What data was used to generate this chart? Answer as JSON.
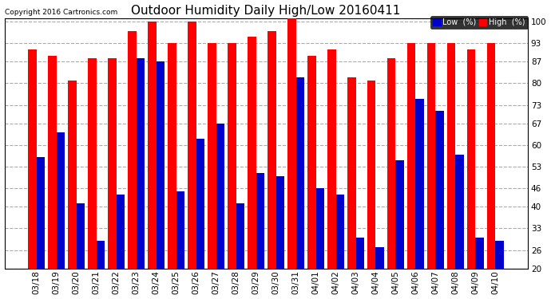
{
  "title": "Outdoor Humidity Daily High/Low 20160411",
  "copyright": "Copyright 2016 Cartronics.com",
  "categories": [
    "03/18",
    "03/19",
    "03/20",
    "03/21",
    "03/22",
    "03/23",
    "03/24",
    "03/25",
    "03/26",
    "03/27",
    "03/28",
    "03/29",
    "03/30",
    "03/31",
    "04/01",
    "04/02",
    "04/03",
    "04/04",
    "04/05",
    "04/06",
    "04/07",
    "04/08",
    "04/09",
    "04/10"
  ],
  "high": [
    91,
    89,
    81,
    88,
    88,
    97,
    100,
    93,
    100,
    93,
    93,
    95,
    97,
    101,
    89,
    91,
    82,
    81,
    88,
    93,
    93,
    93,
    91,
    93
  ],
  "low": [
    56,
    64,
    41,
    29,
    44,
    88,
    87,
    45,
    62,
    67,
    41,
    51,
    50,
    82,
    46,
    44,
    30,
    27,
    55,
    75,
    71,
    57,
    30,
    29
  ],
  "ymin": 20,
  "ylim": [
    20,
    101
  ],
  "yticks": [
    20,
    26,
    33,
    40,
    46,
    53,
    60,
    67,
    73,
    80,
    87,
    93,
    100
  ],
  "bar_width": 0.42,
  "high_color": "#ff0000",
  "low_color": "#0000cc",
  "bg_color": "#ffffff",
  "grid_color": "#aaaaaa",
  "title_fontsize": 11,
  "tick_fontsize": 7.5,
  "legend_low_label": "Low  (%)",
  "legend_high_label": "High  (%)"
}
